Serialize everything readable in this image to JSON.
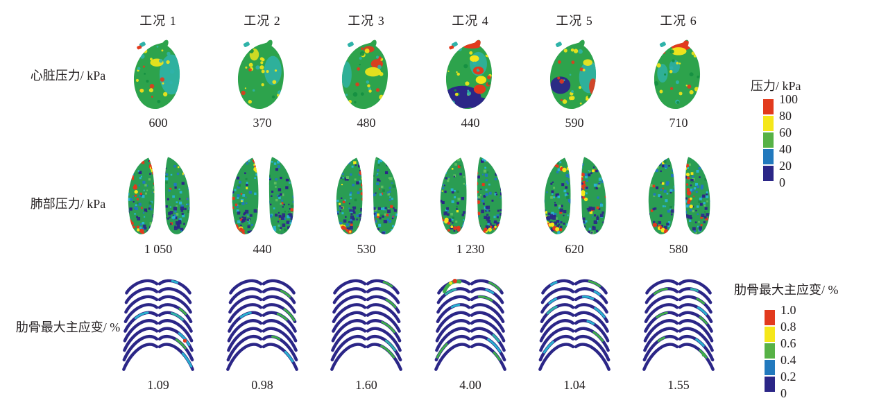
{
  "palette": {
    "red": "#e23a1d",
    "yellow": "#f5e71a",
    "green": "#57b246",
    "blue": "#2279bd",
    "navy": "#2b2687",
    "heart_green": "#2da34c",
    "lung_green": "#2a9d53",
    "teal": "#2fb3a9",
    "cyan": "#29b2cf",
    "text": "#231f20",
    "background": "#ffffff"
  },
  "figure": {
    "column_headers": [
      "工况 1",
      "工况 2",
      "工况 3",
      "工况 4",
      "工况 5",
      "工况 6"
    ],
    "rows": [
      {
        "id": "heart",
        "label": "心脏压力/ kPa",
        "values": [
          "600",
          "370",
          "480",
          "440",
          "590",
          "710"
        ]
      },
      {
        "id": "lung",
        "label": "肺部压力/ kPa",
        "values": [
          "1 050",
          "440",
          "530",
          "1 230",
          "620",
          "580"
        ]
      },
      {
        "id": "rib",
        "label": "肋骨最大主应变/ %",
        "values": [
          "1.09",
          "0.98",
          "1.60",
          "4.00",
          "1.04",
          "1.55"
        ]
      }
    ],
    "legends": [
      {
        "id": "pressure",
        "title": "压力/ kPa",
        "ticks": [
          "100",
          "80",
          "60",
          "40",
          "20",
          "0"
        ],
        "colors": [
          "#e23a1d",
          "#f5e71a",
          "#57b246",
          "#2279bd",
          "#2b2687"
        ]
      },
      {
        "id": "strain",
        "title": "肋骨最大主应变/ %",
        "ticks": [
          "1.0",
          "0.8",
          "0.6",
          "0.4",
          "0.2",
          "0"
        ],
        "colors": [
          "#e23a1d",
          "#f5e71a",
          "#57b246",
          "#2279bd",
          "#2b2687"
        ]
      }
    ]
  },
  "chart_data": [
    {
      "type": "heatmap",
      "title": "心脏压力/ kPa",
      "categories": [
        "工况 1",
        "工况 2",
        "工况 3",
        "工况 4",
        "工况 5",
        "工况 6"
      ],
      "values": [
        600,
        370,
        480,
        440,
        590,
        710
      ],
      "colorbar": {
        "label": "压力/ kPa",
        "range": [
          0,
          100
        ],
        "ticks": [
          100,
          80,
          60,
          40,
          20,
          0
        ],
        "colors_top_to_bottom": [
          "#e23a1d",
          "#f5e71a",
          "#57b246",
          "#2279bd",
          "#2b2687"
        ]
      }
    },
    {
      "type": "heatmap",
      "title": "肺部压力/ kPa",
      "categories": [
        "工况 1",
        "工况 2",
        "工况 3",
        "工况 4",
        "工况 5",
        "工况 6"
      ],
      "values": [
        1050,
        440,
        530,
        1230,
        620,
        580
      ],
      "colorbar": {
        "label": "压力/ kPa",
        "range": [
          0,
          100
        ],
        "ticks": [
          100,
          80,
          60,
          40,
          20,
          0
        ],
        "colors_top_to_bottom": [
          "#e23a1d",
          "#f5e71a",
          "#57b246",
          "#2279bd",
          "#2b2687"
        ]
      }
    },
    {
      "type": "heatmap",
      "title": "肋骨最大主应变/ %",
      "categories": [
        "工况 1",
        "工况 2",
        "工况 3",
        "工况 4",
        "工况 5",
        "工况 6"
      ],
      "values": [
        1.09,
        0.98,
        1.6,
        4.0,
        1.04,
        1.55
      ],
      "colorbar": {
        "label": "肋骨最大主应变/ %",
        "range": [
          0,
          1.0
        ],
        "ticks": [
          1.0,
          0.8,
          0.6,
          0.4,
          0.2,
          0
        ],
        "colors_top_to_bottom": [
          "#e23a1d",
          "#f5e71a",
          "#57b246",
          "#2279bd",
          "#2b2687"
        ]
      }
    }
  ]
}
